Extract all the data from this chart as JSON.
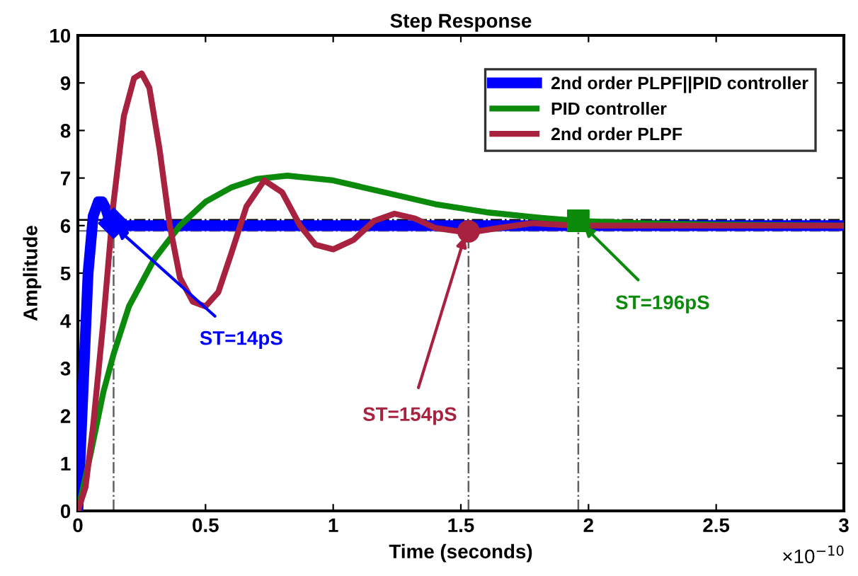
{
  "chart_data": {
    "type": "line",
    "title": "Step Response",
    "xlabel": "Time (seconds)",
    "ylabel": "Amplitude",
    "xlim": [
      0,
      3
    ],
    "ylim": [
      0,
      10
    ],
    "xticks": [
      0,
      0.5,
      1,
      1.5,
      2,
      2.5,
      3
    ],
    "yticks": [
      0,
      1,
      2,
      3,
      4,
      5,
      6,
      7,
      8,
      9,
      10
    ],
    "grid": false,
    "legend": "top right",
    "line_style": "solid",
    "series": [
      {
        "name": "2nd order PLPF||PID controller",
        "color": "#0000ff",
        "x": [
          0,
          0.02,
          0.04,
          0.06,
          0.08,
          0.095,
          0.11,
          0.125,
          0.14,
          0.17,
          0.2,
          3
        ],
        "values": [
          0,
          2.5,
          5.0,
          6.2,
          6.5,
          6.5,
          6.35,
          6.1,
          6.03,
          5.98,
          6.0,
          6.0
        ]
      },
      {
        "name": "PID controller",
        "color": "#0b8a0b",
        "x": [
          0,
          0.05,
          0.1,
          0.14,
          0.2,
          0.3,
          0.4,
          0.5,
          0.6,
          0.7,
          0.82,
          1.0,
          1.2,
          1.4,
          1.6,
          1.8,
          1.96,
          2.2,
          2.5,
          3
        ],
        "values": [
          0,
          1.2,
          2.5,
          3.3,
          4.3,
          5.3,
          6.0,
          6.5,
          6.8,
          6.98,
          7.05,
          6.95,
          6.7,
          6.45,
          6.28,
          6.17,
          6.1,
          6.05,
          6.02,
          6.0
        ]
      },
      {
        "name": "2nd order PLPF",
        "color": "#a8213f",
        "x": [
          0,
          0.03,
          0.06,
          0.1,
          0.14,
          0.18,
          0.22,
          0.25,
          0.28,
          0.32,
          0.36,
          0.4,
          0.45,
          0.5,
          0.55,
          0.6,
          0.66,
          0.73,
          0.8,
          0.87,
          0.93,
          1.0,
          1.08,
          1.16,
          1.24,
          1.32,
          1.4,
          1.53,
          1.65,
          1.78,
          1.95,
          3
        ],
        "values": [
          0,
          0.5,
          1.8,
          4.0,
          6.5,
          8.3,
          9.1,
          9.2,
          8.9,
          7.6,
          6.0,
          4.9,
          4.4,
          4.3,
          4.6,
          5.4,
          6.4,
          6.95,
          6.7,
          6.0,
          5.6,
          5.5,
          5.7,
          6.1,
          6.25,
          6.15,
          5.95,
          5.85,
          5.95,
          6.05,
          6.0,
          6.0
        ]
      },
      {
        "type": "scatter",
        "marker": "diamond",
        "color": "#0000ff",
        "x": [
          0.14
        ],
        "values": [
          6.05
        ]
      },
      {
        "type": "scatter",
        "marker": "circle",
        "color": "#a8213f",
        "x": [
          1.53
        ],
        "values": [
          5.88
        ]
      },
      {
        "type": "scatter",
        "marker": "square",
        "color": "#0b8a0b",
        "x": [
          1.96
        ],
        "values": [
          6.1
        ]
      }
    ],
    "ref_lines": [
      {
        "axis": "y",
        "value": 6.12,
        "color": "#000000",
        "line_style": "dashdot"
      },
      {
        "axis": "y",
        "value": 5.89,
        "color": "#808080",
        "line_style": "dashdot"
      },
      {
        "axis": "x",
        "value": 0.14,
        "color": "#606060",
        "line_style": "dashdot"
      },
      {
        "axis": "x",
        "value": 1.53,
        "color": "#606060",
        "line_style": "dashdot"
      },
      {
        "axis": "x",
        "value": 1.96,
        "color": "#606060",
        "line_style": "dashdot"
      }
    ],
    "annotations": [
      {
        "text": "ST=14pS",
        "x": 0.14,
        "y": 6.0
      },
      {
        "text": "ST=154pS",
        "x": 1.52,
        "y": 5.85
      },
      {
        "text": "ST=196pS",
        "x": 1.97,
        "y": 6.05
      },
      "×10$^{−10}$"
    ]
  }
}
